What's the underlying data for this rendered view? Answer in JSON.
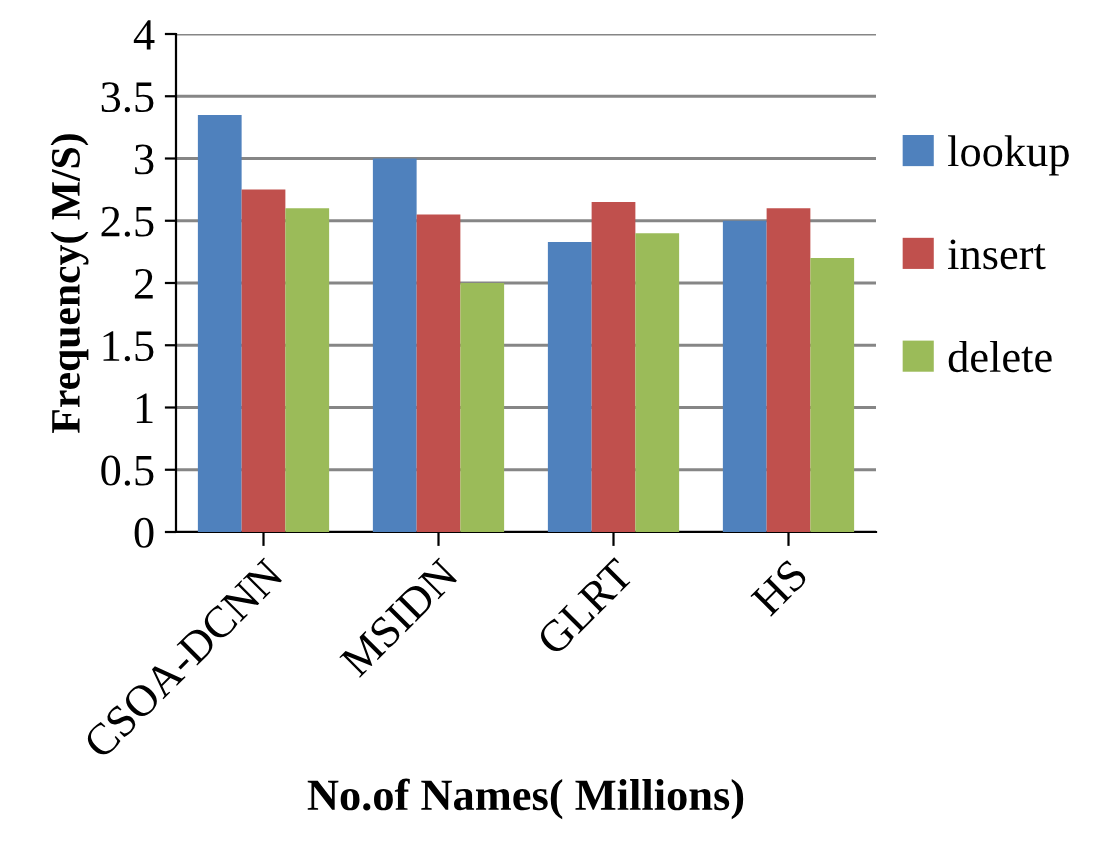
{
  "chart_data": {
    "type": "bar",
    "xlabel": "No.of Names( Millions)",
    "ylabel": "Frequency( M/S)",
    "categories": [
      "CSOA-DCNN",
      "MSIDN",
      "GLRT",
      "HS"
    ],
    "series": [
      {
        "name": "lookup",
        "color": "#4f81bd",
        "values": [
          3.35,
          3.0,
          2.33,
          2.5
        ]
      },
      {
        "name": "insert",
        "color": "#c0504d",
        "values": [
          2.75,
          2.55,
          2.65,
          2.6
        ]
      },
      {
        "name": "delete",
        "color": "#9bbb59",
        "values": [
          2.6,
          2.0,
          2.4,
          2.2
        ]
      }
    ],
    "ylim": [
      0,
      4
    ],
    "yticks": [
      0,
      0.5,
      1,
      1.5,
      2,
      2.5,
      3,
      3.5,
      4
    ],
    "grid": "y",
    "legend": "right"
  }
}
